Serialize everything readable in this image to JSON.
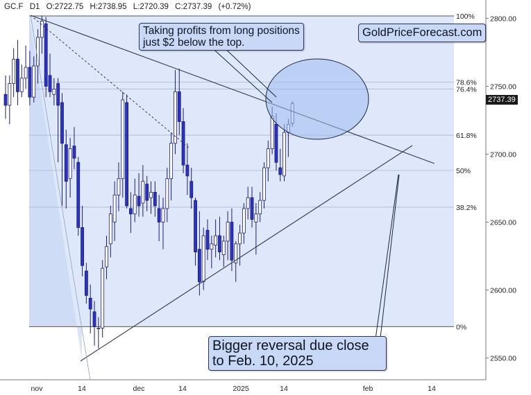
{
  "header": {
    "symbol": "GC.F",
    "interval": "D1",
    "open": "O:2722.75",
    "high": "H:2738.95",
    "low": "L:2720.39",
    "close": "C:2737.39",
    "change": "(+0.72%)"
  },
  "annotations": {
    "top_note_line1": "Taking profits from long positions",
    "top_note_line2": "just $2 below the top.",
    "brand": "GoldPriceForecast.com",
    "bottom_note_line1": "Bigger reversal due close",
    "bottom_note_line2": "to Feb. 10, 2025"
  },
  "last_price_label": "2737.39",
  "colors": {
    "background": "#ffffff",
    "panel": "#dbe6fb",
    "bull_body": "#ffffff",
    "bear_body": "#2a33c8",
    "wick": "#1d1d6a",
    "line": "#333a4a",
    "accent": "#c9d8f7"
  },
  "chart_data": {
    "type": "candlestick",
    "x_tick_labels": [
      "nov",
      "14",
      "dec",
      "14",
      "2025",
      "14",
      "feb",
      "14"
    ],
    "y_axis": {
      "ticks": [
        2550,
        2600,
        2650,
        2700,
        2750,
        2800
      ],
      "tick_labels": [
        "2550.00",
        "2600.00",
        "2650.00",
        "2700.00",
        "2750.00",
        "2800.00"
      ],
      "range": [
        2527,
        2809
      ]
    },
    "fib_levels": [
      {
        "label": "100%",
        "price": 2801.8
      },
      {
        "label": "78.6%",
        "price": 2753.0
      },
      {
        "label": "76.4%",
        "price": 2748.0
      },
      {
        "label": "61.8%",
        "price": 2714.0
      },
      {
        "label": "50%",
        "price": 2688.0
      },
      {
        "label": "38.2%",
        "price": 2661.0
      },
      {
        "label": "0%",
        "price": 2573.0
      }
    ],
    "candles": [
      {
        "o": 2744,
        "h": 2758,
        "l": 2726,
        "c": 2736
      },
      {
        "o": 2736,
        "h": 2758,
        "l": 2722,
        "c": 2752
      },
      {
        "o": 2752,
        "h": 2778,
        "l": 2742,
        "c": 2770
      },
      {
        "o": 2770,
        "h": 2784,
        "l": 2736,
        "c": 2746
      },
      {
        "o": 2746,
        "h": 2766,
        "l": 2742,
        "c": 2756
      },
      {
        "o": 2756,
        "h": 2780,
        "l": 2748,
        "c": 2764
      },
      {
        "o": 2764,
        "h": 2776,
        "l": 2736,
        "c": 2742
      },
      {
        "o": 2742,
        "h": 2772,
        "l": 2738,
        "c": 2765
      },
      {
        "o": 2765,
        "h": 2792,
        "l": 2752,
        "c": 2786
      },
      {
        "o": 2786,
        "h": 2802,
        "l": 2774,
        "c": 2798
      },
      {
        "o": 2796,
        "h": 2801,
        "l": 2742,
        "c": 2750
      },
      {
        "o": 2758,
        "h": 2774,
        "l": 2742,
        "c": 2746
      },
      {
        "o": 2744,
        "h": 2756,
        "l": 2736,
        "c": 2748
      },
      {
        "o": 2752,
        "h": 2756,
        "l": 2694,
        "c": 2736
      },
      {
        "o": 2738,
        "h": 2745,
        "l": 2662,
        "c": 2708
      },
      {
        "o": 2707,
        "h": 2718,
        "l": 2660,
        "c": 2680
      },
      {
        "o": 2682,
        "h": 2712,
        "l": 2668,
        "c": 2704
      },
      {
        "o": 2706,
        "h": 2720,
        "l": 2689,
        "c": 2697
      },
      {
        "o": 2694,
        "h": 2698,
        "l": 2640,
        "c": 2646
      },
      {
        "o": 2646,
        "h": 2662,
        "l": 2610,
        "c": 2618
      },
      {
        "o": 2614,
        "h": 2620,
        "l": 2590,
        "c": 2596
      },
      {
        "o": 2594,
        "h": 2604,
        "l": 2568,
        "c": 2586
      },
      {
        "o": 2584,
        "h": 2592,
        "l": 2559,
        "c": 2573
      },
      {
        "o": 2572,
        "h": 2580,
        "l": 2557,
        "c": 2572
      },
      {
        "o": 2572,
        "h": 2622,
        "l": 2565,
        "c": 2616
      },
      {
        "o": 2617,
        "h": 2640,
        "l": 2608,
        "c": 2632
      },
      {
        "o": 2634,
        "h": 2662,
        "l": 2624,
        "c": 2656
      },
      {
        "o": 2650,
        "h": 2680,
        "l": 2636,
        "c": 2670
      },
      {
        "o": 2670,
        "h": 2694,
        "l": 2658,
        "c": 2682
      },
      {
        "o": 2682,
        "h": 2746,
        "l": 2668,
        "c": 2740
      },
      {
        "o": 2738,
        "h": 2744,
        "l": 2660,
        "c": 2662
      },
      {
        "o": 2660,
        "h": 2672,
        "l": 2642,
        "c": 2656
      },
      {
        "o": 2656,
        "h": 2682,
        "l": 2650,
        "c": 2670
      },
      {
        "o": 2669,
        "h": 2686,
        "l": 2654,
        "c": 2662
      },
      {
        "o": 2664,
        "h": 2692,
        "l": 2654,
        "c": 2680
      },
      {
        "o": 2678,
        "h": 2684,
        "l": 2658,
        "c": 2666
      },
      {
        "o": 2668,
        "h": 2680,
        "l": 2656,
        "c": 2672
      },
      {
        "o": 2672,
        "h": 2680,
        "l": 2654,
        "c": 2662
      },
      {
        "o": 2660,
        "h": 2670,
        "l": 2636,
        "c": 2650
      },
      {
        "o": 2650,
        "h": 2668,
        "l": 2630,
        "c": 2660
      },
      {
        "o": 2660,
        "h": 2690,
        "l": 2650,
        "c": 2682
      },
      {
        "o": 2682,
        "h": 2716,
        "l": 2666,
        "c": 2708
      },
      {
        "o": 2708,
        "h": 2762,
        "l": 2700,
        "c": 2746
      },
      {
        "o": 2746,
        "h": 2763,
        "l": 2714,
        "c": 2724
      },
      {
        "o": 2724,
        "h": 2734,
        "l": 2686,
        "c": 2692
      },
      {
        "o": 2692,
        "h": 2708,
        "l": 2670,
        "c": 2684
      },
      {
        "o": 2680,
        "h": 2690,
        "l": 2660,
        "c": 2668
      },
      {
        "o": 2666,
        "h": 2668,
        "l": 2618,
        "c": 2628
      },
      {
        "o": 2630,
        "h": 2658,
        "l": 2596,
        "c": 2606
      },
      {
        "o": 2606,
        "h": 2646,
        "l": 2600,
        "c": 2640
      },
      {
        "o": 2644,
        "h": 2652,
        "l": 2622,
        "c": 2630
      },
      {
        "o": 2630,
        "h": 2640,
        "l": 2616,
        "c": 2634
      },
      {
        "o": 2633,
        "h": 2652,
        "l": 2624,
        "c": 2640
      },
      {
        "o": 2640,
        "h": 2654,
        "l": 2622,
        "c": 2628
      },
      {
        "o": 2626,
        "h": 2640,
        "l": 2617,
        "c": 2636
      },
      {
        "o": 2636,
        "h": 2658,
        "l": 2622,
        "c": 2650
      },
      {
        "o": 2650,
        "h": 2660,
        "l": 2614,
        "c": 2622
      },
      {
        "o": 2620,
        "h": 2636,
        "l": 2606,
        "c": 2634
      },
      {
        "o": 2634,
        "h": 2648,
        "l": 2618,
        "c": 2642
      },
      {
        "o": 2642,
        "h": 2664,
        "l": 2634,
        "c": 2660
      },
      {
        "o": 2660,
        "h": 2676,
        "l": 2652,
        "c": 2668
      },
      {
        "o": 2668,
        "h": 2676,
        "l": 2646,
        "c": 2652
      },
      {
        "o": 2650,
        "h": 2664,
        "l": 2626,
        "c": 2656
      },
      {
        "o": 2656,
        "h": 2672,
        "l": 2650,
        "c": 2666
      },
      {
        "o": 2666,
        "h": 2694,
        "l": 2660,
        "c": 2690
      },
      {
        "o": 2690,
        "h": 2710,
        "l": 2680,
        "c": 2704
      },
      {
        "o": 2704,
        "h": 2735,
        "l": 2700,
        "c": 2728
      },
      {
        "o": 2722,
        "h": 2730,
        "l": 2688,
        "c": 2694
      },
      {
        "o": 2690,
        "h": 2704,
        "l": 2680,
        "c": 2685
      },
      {
        "o": 2684,
        "h": 2722,
        "l": 2680,
        "c": 2716
      },
      {
        "o": 2716,
        "h": 2726,
        "l": 2698,
        "c": 2722
      },
      {
        "o": 2722.75,
        "h": 2738.95,
        "l": 2720.39,
        "c": 2737.39
      }
    ],
    "trendlines": [
      "falling resistance from late-October top",
      "rising support from mid-November low",
      "dashed decline line"
    ],
    "highlight": "ellipse around the current top"
  }
}
